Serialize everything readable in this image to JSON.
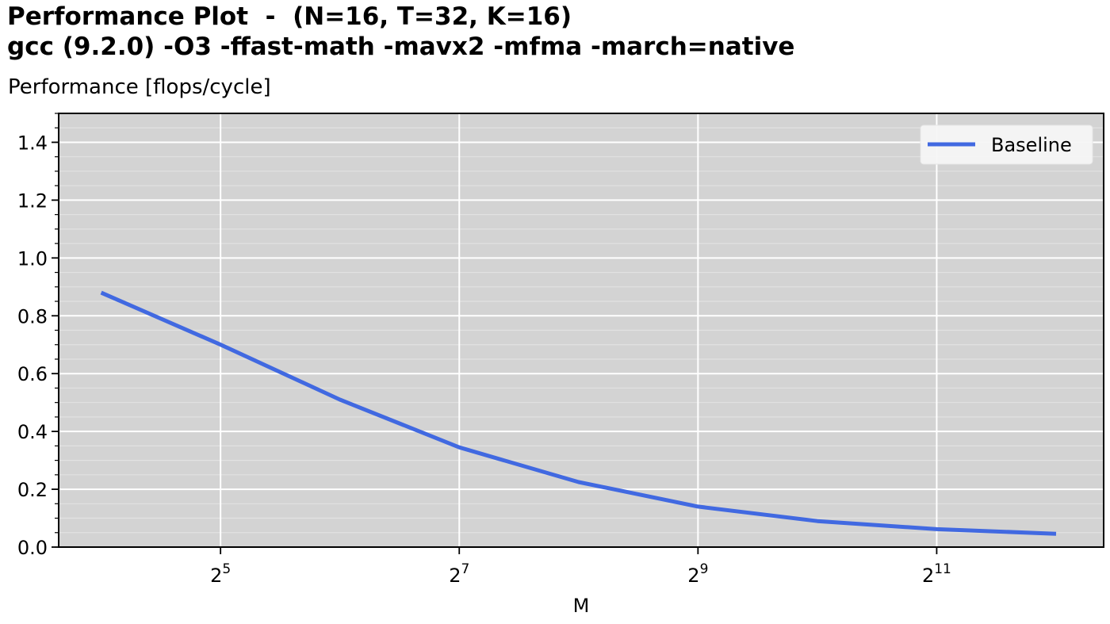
{
  "chart_data": {
    "type": "line",
    "title_line1": "Performance Plot  -  (N=16, T=32, K=16)",
    "title_line2": "gcc (9.2.0) -O3 -ffast-math -mavx2 -mfma -march=native",
    "ylabel": "Performance [flops/cycle]",
    "xlabel": "M",
    "x_scale": "log2",
    "xlim": [
      12.5,
      5400
    ],
    "ylim": [
      0.0,
      1.5
    ],
    "y_ticks": [
      0.0,
      0.2,
      0.4,
      0.6,
      0.8,
      1.0,
      1.2,
      1.4
    ],
    "y_tick_labels": [
      "0.0",
      "0.2",
      "0.4",
      "0.6",
      "0.8",
      "1.0",
      "1.2",
      "1.4"
    ],
    "x_ticks": [
      32,
      128,
      512,
      2048
    ],
    "x_tick_labels": [
      {
        "base": "2",
        "exp": "5"
      },
      {
        "base": "2",
        "exp": "7"
      },
      {
        "base": "2",
        "exp": "9"
      },
      {
        "base": "2",
        "exp": "11"
      }
    ],
    "grid": true,
    "legend_position": "top-right",
    "background_color": "#d3d3d3",
    "series": [
      {
        "name": "Baseline",
        "color": "#4169e1",
        "x": [
          16,
          32,
          64,
          128,
          256,
          512,
          1024,
          2048,
          4096
        ],
        "y": [
          0.88,
          0.7,
          0.51,
          0.345,
          0.225,
          0.14,
          0.09,
          0.062,
          0.046
        ]
      }
    ]
  }
}
